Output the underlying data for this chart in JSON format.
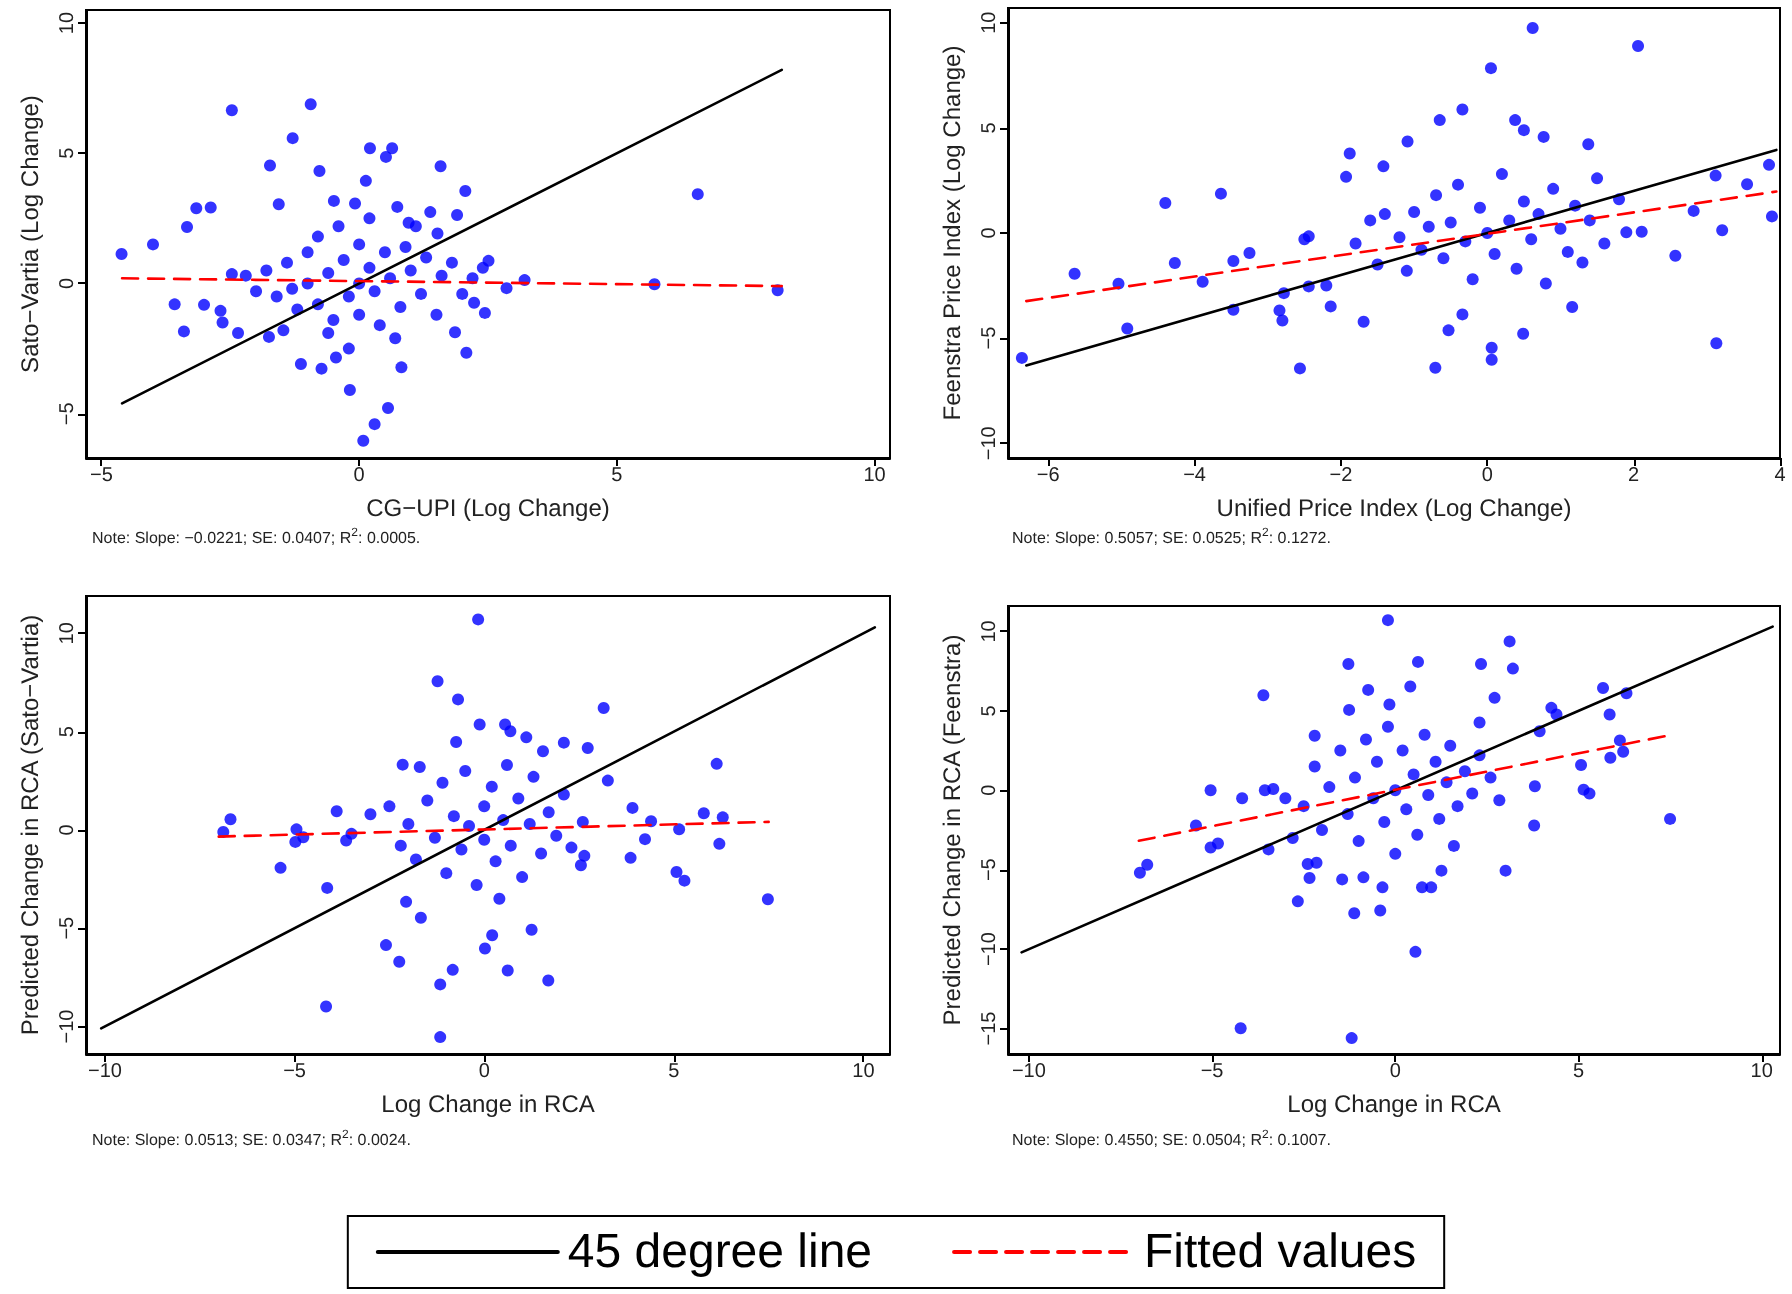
{
  "chart_data": [
    {
      "type": "scatter",
      "xlabel": "CG−UPI (Log Change)",
      "ylabel": "Sato−Vartia (Log Change)",
      "xlim": [
        -5.3,
        10.3
      ],
      "xticks": [
        -5,
        0,
        5,
        10
      ],
      "ylim": [
        -6.7,
        10.5
      ],
      "yticks": [
        -5,
        0,
        5,
        10
      ],
      "annotations": [
        "Note: Slope: −0.0221; SE: 0.0407; R$^{2}$: 0.0005."
      ],
      "series": [
        {
          "marker": "circle",
          "color": "#0000ff",
          "x": [
            -4.61,
            -4.0,
            -3.58,
            -3.4,
            -3.34,
            -3.16,
            -3.01,
            -2.88,
            -2.69,
            -2.65,
            -2.47,
            -2.47,
            -2.35,
            -1.75,
            -1.73,
            -1.56,
            -1.47,
            -1.29,
            -1.13,
            -0.94,
            -0.77,
            -0.73,
            -0.49,
            -0.45,
            -0.18,
            -0.08,
            0.08,
            0.13,
            0.21,
            0.3,
            0.52,
            0.56,
            0.64,
            0.82,
            0.74,
            0.96,
            1.38,
            1.52,
            1.58,
            1.9,
            2.06,
            2.08,
            1.86,
            2.23,
            2.44,
            2.51,
            2.86,
            3.21,
            5.73,
            6.57,
            8.12,
            -2.2,
            -2,
            -1.8,
            -1.6,
            -1.4,
            -1.2,
            -1,
            -1,
            -0.8,
            -0.8,
            -0.6,
            -0.5,
            -0.4,
            -0.3,
            -0.2,
            0,
            0,
            0,
            0.2,
            0.2,
            0.3,
            0.4,
            0.5,
            0.6,
            0.8,
            0.9,
            1,
            1.2,
            1.3,
            1.5,
            1.6,
            1.8,
            2,
            2.2,
            2.4,
            -1.3,
            0.7,
            -0.2,
            1.1,
            -0.6
          ],
          "values": [
            1.13,
            1.5,
            -0.8,
            -1.84,
            2.17,
            2.89,
            -0.82,
            2.92,
            -1.05,
            -1.5,
            6.65,
            0.36,
            -1.9,
            -2.05,
            4.53,
            3.04,
            -1.8,
            5.58,
            -3.09,
            6.88,
            4.32,
            -3.27,
            3.17,
            -2.84,
            -4.09,
            3.07,
            -6.04,
            3.94,
            5.19,
            -5.4,
            4.86,
            -4.78,
            5.19,
            -3.22,
            2.94,
            2.33,
            2.74,
            1.92,
            4.5,
            2.63,
            3.55,
            -2.66,
            -1.87,
            -0.74,
            -1.13,
            0.87,
            -0.18,
            0.13,
            -0.03,
            3.43,
            -0.26,
            0.3,
            -0.3,
            0.5,
            -0.5,
            0.8,
            -1,
            1.2,
            0,
            -0.8,
            1.8,
            0.4,
            -1.4,
            2.2,
            0.9,
            -0.5,
            0,
            1.5,
            -1.2,
            0.6,
            2.5,
            -0.3,
            -1.6,
            1.2,
            0.2,
            -0.9,
            1.4,
            0.5,
            -0.4,
            1,
            -1.2,
            0.3,
            0.8,
            -0.4,
            0.2,
            0.6,
            -0.2,
            -2.1,
            -2.5,
            2.2,
            -1.9
          ]
        },
        {
          "type": "line",
          "marker": "none",
          "color": "#000000",
          "line_style": "solid",
          "x": [
            -4.6,
            8.2
          ],
          "values": [
            -4.6,
            8.2
          ]
        },
        {
          "type": "line",
          "marker": "none",
          "color": "#ff0000",
          "line_style": "dashed",
          "x": [
            -4.6,
            8.2
          ],
          "values": [
            0.2,
            -0.1
          ]
        }
      ]
    },
    {
      "type": "scatter",
      "xlabel": "Unified Price Index (Log Change)",
      "ylabel": "Feenstra Price Index (Log Change)",
      "xlim": [
        -6.55,
        4
      ],
      "xticks": [
        -6,
        -4,
        -2,
        0,
        2,
        4
      ],
      "ylim": [
        -10.7,
        10.7
      ],
      "yticks": [
        -10,
        -5,
        0,
        5,
        10
      ],
      "annotations": [
        "Note: Slope: 0.5057; SE: 0.0525; R$^{2}$: 0.1272."
      ],
      "series": [
        {
          "marker": "circle",
          "color": "#0000ff",
          "x": [
            -6.36,
            -5.64,
            -5.04,
            -4.92,
            -4.4,
            -4.27,
            -3.89,
            -3.64,
            -3.47,
            -3.47,
            -3.25,
            -2.84,
            -2.8,
            -2.78,
            -2.56,
            -2.44,
            -2.44,
            -2.14,
            -1.93,
            -1.88,
            -1.69,
            -1.42,
            -1.09,
            -0.71,
            -0.65,
            -0.34,
            -0.34,
            -0.53,
            0.05,
            0.06,
            0.06,
            0.38,
            0.5,
            0.49,
            0.62,
            0.77,
            1.16,
            1.38,
            2.06,
            2.57,
            2.82,
            3.12,
            3.13,
            3.21,
            3.55,
            3.85,
            3.89,
            1.9,
            2.11,
            -1.8,
            -1.6,
            -1.5,
            -1.4,
            -1.2,
            -1.1,
            -1,
            -0.9,
            -0.8,
            -0.7,
            -0.6,
            -0.5,
            -0.4,
            -0.3,
            -0.2,
            -0.1,
            0,
            0.1,
            0.2,
            0.3,
            0.4,
            0.5,
            0.6,
            0.7,
            0.8,
            0.9,
            1,
            1.1,
            1.2,
            1.3,
            1.4,
            1.5,
            1.6,
            1.8,
            -2.2,
            -2.5
          ],
          "values": [
            -5.94,
            -1.94,
            -2.41,
            -4.54,
            1.43,
            -1.43,
            -2.32,
            1.87,
            -3.65,
            -1.33,
            -0.95,
            -3.68,
            -4.16,
            -2.86,
            -6.44,
            -2.54,
            -0.16,
            -3.49,
            2.67,
            3.78,
            -4.22,
            3.17,
            4.35,
            -6.41,
            5.37,
            5.87,
            -3.87,
            -4.63,
            7.84,
            -5.46,
            -6.03,
            5.37,
            4.89,
            -4.79,
            9.75,
            4.57,
            -3.52,
            4.22,
            8.89,
            -1.08,
            1.05,
            2.73,
            -5.24,
            0.13,
            2.32,
            3.24,
            0.79,
            0.03,
            0.06,
            -0.5,
            0.6,
            -1.5,
            0.9,
            -0.2,
            -1.8,
            1,
            -0.8,
            0.3,
            1.8,
            -1.2,
            0.5,
            2.3,
            -0.4,
            -2.2,
            1.2,
            0,
            -1,
            2.8,
            0.6,
            -1.7,
            1.5,
            -0.3,
            0.9,
            -2.4,
            2.1,
            0.2,
            -0.9,
            1.3,
            -1.4,
            0.6,
            2.6,
            -0.5,
            1.6,
            -2.5,
            -0.3
          ]
        },
        {
          "type": "line",
          "marker": "none",
          "color": "#000000",
          "line_style": "solid",
          "x": [
            -6.3,
            3.95
          ],
          "values": [
            -6.3,
            3.95
          ]
        },
        {
          "type": "line",
          "marker": "none",
          "color": "#ff0000",
          "line_style": "dashed",
          "x": [
            -6.3,
            3.95
          ],
          "values": [
            -3.24,
            1.97
          ]
        }
      ]
    },
    {
      "type": "scatter",
      "xlabel": "Log Change in RCA",
      "ylabel": "Predicted Change in RCA (Sato−Vartia)",
      "xlim": [
        -10.5,
        10.7
      ],
      "xticks": [
        -10,
        -5,
        0,
        5,
        10
      ],
      "ylim": [
        -11.4,
        11.9
      ],
      "yticks": [
        -10,
        -5,
        0,
        5,
        10
      ],
      "annotations": [
        "Note: Slope: 0.0513; SE: 0.0347; R$^{2}$: 0.0024."
      ],
      "series": [
        {
          "marker": "circle",
          "color": "#0000ff",
          "x": [
            -6.88,
            -6.69,
            -5.37,
            -4.95,
            -4.98,
            -4.77,
            -4.14,
            -4.17,
            -3.89,
            -3.64,
            -2.59,
            -2.24,
            -2.06,
            -2.15,
            -1.67,
            -1.23,
            -1.16,
            -1.16,
            -0.83,
            -0.69,
            -0.74,
            -0.16,
            -0.12,
            0.02,
            0.21,
            0.62,
            0.55,
            0.69,
            1.11,
            1.25,
            1.55,
            1.69,
            2.1,
            2.73,
            3.15,
            3.26,
            3.91,
            3.86,
            4.24,
            4.4,
            5.07,
            5.28,
            5.14,
            6.13,
            6.2,
            6.29,
            5.79,
            7.48,
            2.64,
            2.55,
            -3,
            -2.5,
            -2.2,
            -2,
            -1.8,
            -1.5,
            -1.3,
            -1.1,
            -1,
            -0.8,
            -0.6,
            -0.5,
            -0.4,
            -0.2,
            0,
            0,
            0.2,
            0.3,
            0.5,
            0.6,
            0.7,
            0.9,
            1,
            1.2,
            1.3,
            1.5,
            1.7,
            1.9,
            2.1,
            2.3,
            2.6,
            -1.7,
            0.4,
            -3.5
          ],
          "values": [
            -0.1,
            0.54,
            -1.93,
            0.03,
            -0.61,
            -0.37,
            -2.95,
            -8.98,
            0.95,
            -0.54,
            -5.86,
            -6.71,
            -3.66,
            3.32,
            -4.47,
            7.56,
            -7.86,
            -10.54,
            -7.12,
            6.64,
            4.47,
            10.71,
            5.36,
            -6.03,
            -5.36,
            -7.15,
            5.36,
            5.02,
            4.71,
            -5.08,
            4.0,
            -7.66,
            4.44,
            4.17,
            6.2,
            2.51,
            1.12,
            -1.42,
            -0.47,
            0.44,
            -2.14,
            -2.58,
            0.03,
            3.36,
            -0.71,
            0.64,
            0.85,
            -3.53,
            -1.32,
            -1.8,
            0.8,
            1.2,
            -0.8,
            0.3,
            -1.5,
            1.5,
            -0.4,
            2.4,
            -2.2,
            0.7,
            -1,
            3,
            0.2,
            -2.8,
            1.2,
            -0.5,
            2.2,
            -1.6,
            0.5,
            3.3,
            -0.8,
            1.6,
            -2.4,
            0.3,
            2.7,
            -1.2,
            0.9,
            -0.3,
            1.8,
            -0.9,
            0.4,
            3.2,
            -3.5,
            -0.2
          ]
        },
        {
          "type": "line",
          "marker": "none",
          "color": "#000000",
          "line_style": "solid",
          "x": [
            -10.1,
            10.3
          ],
          "values": [
            -10.1,
            10.3
          ]
        },
        {
          "type": "line",
          "marker": "none",
          "color": "#ff0000",
          "line_style": "dashed",
          "x": [
            -7,
            7.5
          ],
          "values": [
            -0.34,
            0.41
          ]
        }
      ]
    },
    {
      "type": "scatter",
      "xlabel": "Log Change in RCA",
      "ylabel": "Predicted Change in RCA (Feenstra)",
      "xlim": [
        -10.57,
        10.5
      ],
      "xticks": [
        -10,
        -5,
        0,
        5,
        10
      ],
      "ylim": [
        -16.6,
        11.6
      ],
      "yticks": [
        -15,
        -10,
        -5,
        0,
        5,
        10
      ],
      "legend": "bottom",
      "annotations": [
        "Note: Slope: 0.4550; SE: 0.0504; R$^{2}$: 0.1007."
      ],
      "series": [
        {
          "marker": "circle",
          "color": "#0000ff",
          "x": [
            -6.97,
            -6.77,
            -5.44,
            -5.04,
            -5.04,
            -4.84,
            -4.22,
            -4.18,
            -3.6,
            -3.56,
            -3.33,
            -3.46,
            -2.66,
            -2.39,
            -2.34,
            -2.15,
            -2.2,
            -1.45,
            -1.28,
            -1.26,
            -1.19,
            -1.12,
            -0.87,
            -0.74,
            -0.41,
            -0.35,
            -0.2,
            -0.16,
            0.41,
            0.55,
            0.62,
            0.73,
            0.98,
            1.26,
            2.3,
            2.34,
            2.71,
            3.12,
            3.21,
            3.01,
            2.84,
            3.79,
            3.94,
            4.26,
            4.4,
            5.07,
            5.14,
            5.3,
            5.67,
            5.85,
            5.87,
            6.13,
            6.22,
            6.31,
            7.5,
            3.81,
            -2.5,
            -2.2,
            -2,
            -1.8,
            -1.5,
            -1.3,
            -1.1,
            -1,
            -0.8,
            -0.6,
            -0.5,
            -0.3,
            -0.2,
            0,
            0,
            0.2,
            0.3,
            0.5,
            0.6,
            0.8,
            0.9,
            1.1,
            1.2,
            1.4,
            1.5,
            1.7,
            1.9,
            2.1,
            2.3,
            2.6,
            -3,
            -2.8,
            1.6
          ],
          "values": [
            -5.19,
            -4.69,
            -2.22,
            0,
            -3.6,
            -3.35,
            -14.98,
            -0.5,
            5.98,
            0,
            0.08,
            -3.72,
            -6.99,
            -4.64,
            -5.52,
            -4.56,
            3.43,
            -5.61,
            7.95,
            5.06,
            -15.6,
            -7.74,
            -5.48,
            6.32,
            -7.57,
            -6.11,
            10.71,
            5.4,
            6.53,
            -10.17,
            8.08,
            -6.11,
            -6.11,
            -5.06,
            4.27,
            7.95,
            5.82,
            9.37,
            7.66,
            -5.06,
            -0.63,
            -2.22,
            3.72,
            5.19,
            4.77,
            1.59,
            0.04,
            -0.21,
            6.44,
            4.77,
            2.05,
            3.14,
            2.43,
            6.11,
            -1.8,
            0.25,
            -1,
            1.5,
            -2.5,
            0.2,
            2.5,
            -1.5,
            0.8,
            -3.2,
            3.2,
            -0.5,
            1.8,
            -2,
            4,
            0,
            -4,
            2.5,
            -1.2,
            1,
            -2.8,
            3.5,
            -0.3,
            1.8,
            -1.8,
            0.5,
            2.8,
            -1,
            1.2,
            -0.2,
            2.2,
            0.8,
            -0.5,
            -3,
            -3.5
          ]
        },
        {
          "type": "line",
          "marker": "none",
          "name": "45 degree line",
          "color": "#000000",
          "line_style": "solid",
          "x": [
            -10.2,
            10.3
          ],
          "values": [
            -10.2,
            10.3
          ]
        },
        {
          "type": "line",
          "marker": "none",
          "name": "Fitted values",
          "color": "#ff0000",
          "line_style": "dashed",
          "x": [
            -7,
            7.5
          ],
          "values": [
            -3.18,
            3.47
          ]
        }
      ]
    }
  ]
}
